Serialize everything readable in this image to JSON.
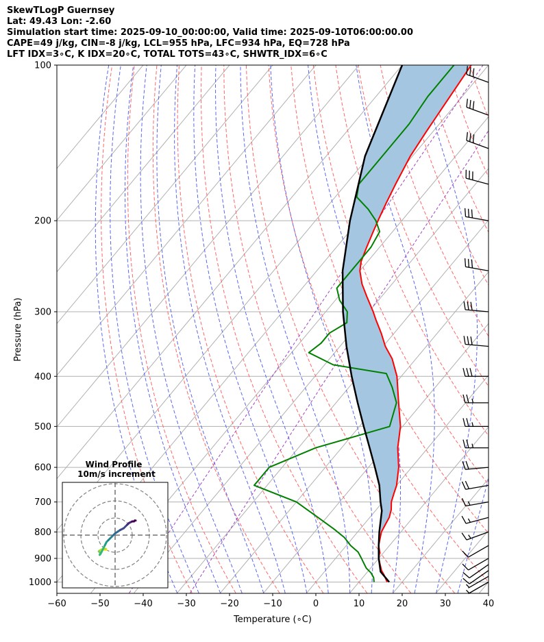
{
  "header": {
    "title": "SkewTLogP Guernsey",
    "latlon": "Lat: 49.43   Lon: -2.60",
    "times": "Simulation start time: 2025-09-10_00:00:00, Valid time: 2025-09-10T06:00:00.00",
    "indices1": "CAPE=49 j/kg, CIN=-8 j/kg, LCL=955 hPa, LFC=934 hPa, EQ=728 hPa",
    "indices2": "LFT IDX=3∘C, K IDX=20∘C, TOTAL TOTS=43∘C, SHWTR_IDX=6∘C"
  },
  "chart_data": [
    {
      "type": "line",
      "name": "skewt",
      "xlabel": "Temperature (∘C)",
      "ylabel": "Pressure (hPa)",
      "xlim": [
        -60,
        40
      ],
      "ylim": [
        1050,
        100
      ],
      "x_scale": "skewed linear",
      "y_scale": "log",
      "x_ticks": [
        -60,
        -50,
        -40,
        -30,
        -20,
        -10,
        0,
        10,
        20,
        30,
        40
      ],
      "y_ticks": [
        1000,
        900,
        800,
        700,
        600,
        500,
        400,
        300,
        200,
        100
      ],
      "grid": true,
      "temperature_profile": {
        "color": "#ff0000",
        "p": [
          1000,
          970,
          950,
          925,
          900,
          875,
          850,
          825,
          800,
          775,
          750,
          725,
          700,
          675,
          650,
          600,
          550,
          500,
          450,
          400,
          370,
          350,
          330,
          310,
          300,
          280,
          265,
          250,
          240,
          225,
          210,
          200,
          185,
          170,
          150,
          135,
          120,
          100
        ],
        "t": [
          16.5,
          14.5,
          13.0,
          11.5,
          10.0,
          9.0,
          7.5,
          6.5,
          5.5,
          5.0,
          4.5,
          3.5,
          2.0,
          1.0,
          0.0,
          -3.0,
          -7.0,
          -10.5,
          -15.5,
          -21.0,
          -25.5,
          -29.5,
          -33.0,
          -37.0,
          -39.0,
          -43.5,
          -47.0,
          -50.0,
          -51.5,
          -53.0,
          -54.5,
          -55.5,
          -57.0,
          -58.5,
          -60.5,
          -61.5,
          -62.5,
          -64.0
        ]
      },
      "dewpoint_profile": {
        "color": "#008000",
        "p": [
          1000,
          980,
          960,
          940,
          920,
          900,
          875,
          850,
          820,
          790,
          750,
          700,
          650,
          600,
          550,
          500,
          450,
          420,
          395,
          380,
          360,
          345,
          330,
          315,
          300,
          285,
          270,
          255,
          240,
          225,
          210,
          200,
          190,
          180,
          170,
          150,
          130,
          115,
          100
        ],
        "td": [
          13.5,
          12.5,
          11.0,
          9.0,
          7.5,
          6.0,
          4.0,
          1.0,
          -2.0,
          -6.0,
          -12.0,
          -20.0,
          -33.0,
          -33.0,
          -26.0,
          -13.0,
          -16.0,
          -20.0,
          -24.0,
          -38.0,
          -46.0,
          -45.0,
          -45.0,
          -43.0,
          -45.0,
          -49.0,
          -52.0,
          -52.0,
          -52.0,
          -52.0,
          -53.0,
          -56.0,
          -60.0,
          -65.0,
          -67.0,
          -67.0,
          -67.0,
          -68.0,
          -68.0
        ]
      },
      "parcel_profile": {
        "color": "#000000",
        "p": [
          1000,
          955,
          900,
          850,
          800,
          728,
          700,
          650,
          600,
          550,
          500,
          450,
          400,
          350,
          300,
          250,
          200,
          150,
          100
        ],
        "t": [
          17.0,
          13.0,
          10.0,
          7.5,
          5.0,
          1.5,
          -0.5,
          -4.0,
          -8.5,
          -13.5,
          -19.0,
          -25.0,
          -31.5,
          -38.5,
          -46.0,
          -54.0,
          -62.0,
          -71.0,
          -80.0
        ]
      },
      "wind_barbs": [
        {
          "p": 1000,
          "speed_kt": 5,
          "dir_deg": 240
        },
        {
          "p": 975,
          "speed_kt": 5,
          "dir_deg": 240
        },
        {
          "p": 950,
          "speed_kt": 10,
          "dir_deg": 235
        },
        {
          "p": 925,
          "speed_kt": 10,
          "dir_deg": 235
        },
        {
          "p": 900,
          "speed_kt": 10,
          "dir_deg": 240
        },
        {
          "p": 850,
          "speed_kt": 10,
          "dir_deg": 240
        },
        {
          "p": 800,
          "speed_kt": 15,
          "dir_deg": 250
        },
        {
          "p": 750,
          "speed_kt": 15,
          "dir_deg": 255
        },
        {
          "p": 700,
          "speed_kt": 15,
          "dir_deg": 260
        },
        {
          "p": 650,
          "speed_kt": 20,
          "dir_deg": 260
        },
        {
          "p": 600,
          "speed_kt": 20,
          "dir_deg": 265
        },
        {
          "p": 550,
          "speed_kt": 25,
          "dir_deg": 270
        },
        {
          "p": 500,
          "speed_kt": 25,
          "dir_deg": 270
        },
        {
          "p": 450,
          "speed_kt": 25,
          "dir_deg": 270
        },
        {
          "p": 400,
          "speed_kt": 30,
          "dir_deg": 270
        },
        {
          "p": 350,
          "speed_kt": 30,
          "dir_deg": 275
        },
        {
          "p": 300,
          "speed_kt": 30,
          "dir_deg": 275
        },
        {
          "p": 250,
          "speed_kt": 30,
          "dir_deg": 280
        },
        {
          "p": 200,
          "speed_kt": 30,
          "dir_deg": 280
        },
        {
          "p": 170,
          "speed_kt": 30,
          "dir_deg": 285
        },
        {
          "p": 145,
          "speed_kt": 30,
          "dir_deg": 290
        },
        {
          "p": 125,
          "speed_kt": 30,
          "dir_deg": 290
        },
        {
          "p": 108,
          "speed_kt": 30,
          "dir_deg": 290
        }
      ]
    },
    {
      "type": "scatter",
      "name": "hodograph",
      "title": "Wind Profile",
      "subtitle": "10m/s increment",
      "ring_step": 10,
      "colormap": "viridis",
      "u": [
        -5,
        -6,
        -7,
        -6.5,
        -5.5,
        -7,
        -9,
        -9.5,
        -9,
        -8.5,
        -9,
        -8,
        -7,
        -6,
        -5.5,
        -5,
        -4,
        -3,
        -2,
        -1,
        0,
        1.5,
        3,
        5,
        6,
        7,
        8,
        9,
        10,
        11,
        11.5,
        12
      ],
      "v": [
        -8.5,
        -8.5,
        -8.5,
        -8,
        -8,
        -8,
        -9,
        -9.5,
        -10,
        -11,
        -11.5,
        -10,
        -8,
        -6,
        -5,
        -4,
        -3,
        -2,
        -1,
        0,
        1,
        2,
        3,
        4,
        5,
        6,
        7,
        7.5,
        8,
        8,
        8.5,
        8.5
      ]
    }
  ]
}
